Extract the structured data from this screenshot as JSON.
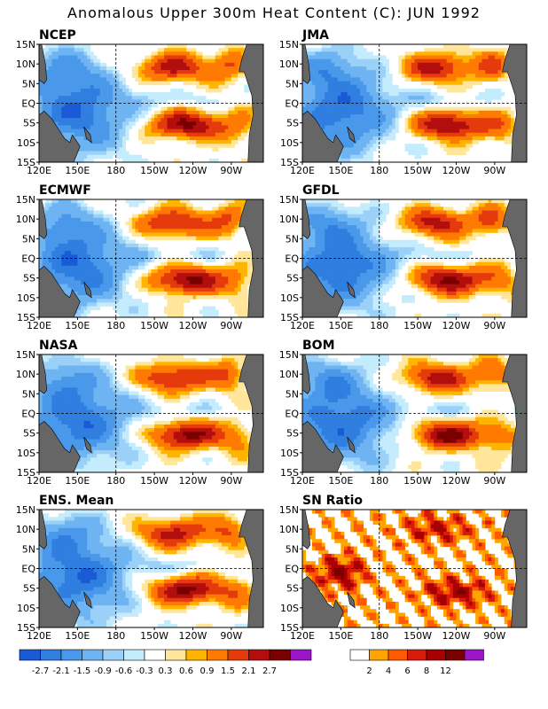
{
  "title": "Anomalous Upper 300m Heat Content (C): JUN 1992",
  "panels": [
    {
      "label": "NCEP",
      "variant": "anom",
      "seed": 1
    },
    {
      "label": "JMA",
      "variant": "anom",
      "seed": 2
    },
    {
      "label": "ECMWF",
      "variant": "anom",
      "seed": 3
    },
    {
      "label": "GFDL",
      "variant": "anom",
      "seed": 4
    },
    {
      "label": "NASA",
      "variant": "anom",
      "seed": 5
    },
    {
      "label": "BOM",
      "variant": "anom",
      "seed": 6
    },
    {
      "label": "ENS. Mean",
      "variant": "anom",
      "seed": 7
    },
    {
      "label": "SN Ratio",
      "variant": "snr",
      "seed": 8
    }
  ],
  "axes": {
    "x_ticks": [
      "120E",
      "150E",
      "180",
      "150W",
      "120W",
      "90W"
    ],
    "x_values": [
      120,
      150,
      180,
      210,
      240,
      270
    ],
    "y_ticks": [
      "15N",
      "10N",
      "5N",
      "EQ",
      "5S",
      "10S",
      "15S"
    ],
    "y_values": [
      15,
      10,
      5,
      0,
      -5,
      -10,
      -15
    ],
    "xlim": [
      120,
      295
    ],
    "ylim": [
      -15,
      15
    ]
  },
  "chart_data": [
    {
      "type": "heatmap",
      "title": "Anomalous Upper 300m Heat Content (C): JUN 1992",
      "panels": [
        "NCEP",
        "JMA",
        "ECMWF",
        "GFDL",
        "NASA",
        "BOM",
        "ENS. Mean"
      ],
      "colorbar_ticks": [
        "-2.7",
        "-2.1",
        "-1.5",
        "-0.9",
        "-0.6",
        "-0.3",
        "0.3",
        "0.6",
        "0.9",
        "1.5",
        "2.1",
        "2.7"
      ],
      "colors": [
        "#1a5ad6",
        "#2f7ee0",
        "#4a98ea",
        "#6fb4f2",
        "#9bd0f8",
        "#c4ecfd",
        "#ffffff",
        "#ffe69a",
        "#ffb400",
        "#ff7a00",
        "#e53b0c",
        "#b20e0e",
        "#7a0000",
        "#9b16c8"
      ]
    },
    {
      "type": "heatmap",
      "title": "SN Ratio",
      "colorbar_ticks": [
        "2",
        "4",
        "6",
        "8",
        "12"
      ],
      "colors": [
        "#ffffff",
        "#ffa500",
        "#ff5a00",
        "#d81a0a",
        "#a80000",
        "#7a0000",
        "#9b16c8"
      ]
    }
  ]
}
